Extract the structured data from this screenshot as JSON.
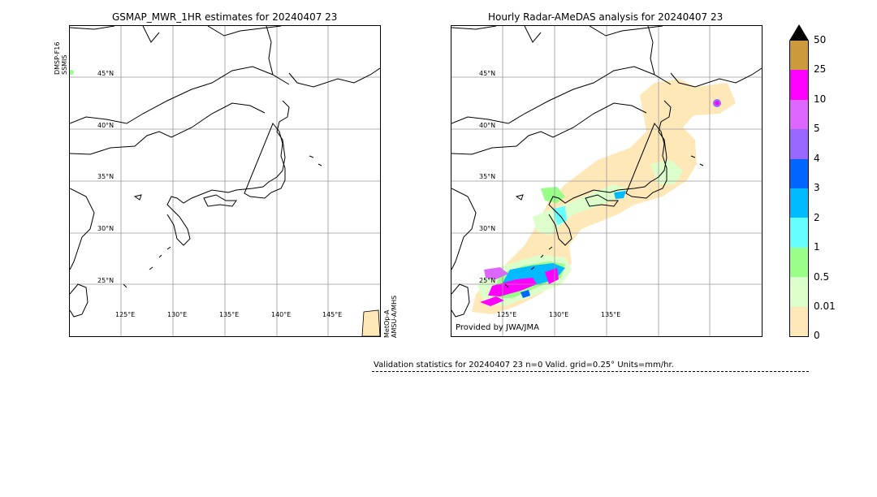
{
  "left_panel": {
    "title": "GSMAP_MWR_1HR estimates for 20240407 23",
    "lat_labels": [
      "45°N",
      "40°N",
      "35°N",
      "30°N",
      "25°N"
    ],
    "lon_labels": [
      "125°E",
      "130°E",
      "135°E",
      "140°E",
      "145°E"
    ],
    "satellite_top": [
      "DMSP-F16",
      "SSMIS"
    ],
    "satellite_bottom": [
      "MetOp-A",
      "AMSU-A/MHS"
    ]
  },
  "right_panel": {
    "title": "Hourly Radar-AMeDAS analysis for 20240407 23",
    "lat_labels": [
      "45°N",
      "40°N",
      "35°N",
      "30°N",
      "25°N"
    ],
    "lon_labels": [
      "125°E",
      "130°E",
      "135°E"
    ],
    "provided_by": "Provided by JWA/JMA"
  },
  "colorbar": {
    "ticks": [
      "50",
      "25",
      "10",
      "5",
      "4",
      "3",
      "2",
      "1",
      "0.5",
      "0.01",
      "0"
    ],
    "colors": [
      "#cc9a3a",
      "#ff00ff",
      "#dd66ff",
      "#9966ff",
      "#0066ff",
      "#00bbff",
      "#66ffff",
      "#99ff88",
      "#ddffcc",
      "#ffe8b8"
    ],
    "over_color": "#000000"
  },
  "stats": {
    "text": "Validation statistics for 20240407 23  n=0 Valid. grid=0.25° Units=mm/hr."
  }
}
